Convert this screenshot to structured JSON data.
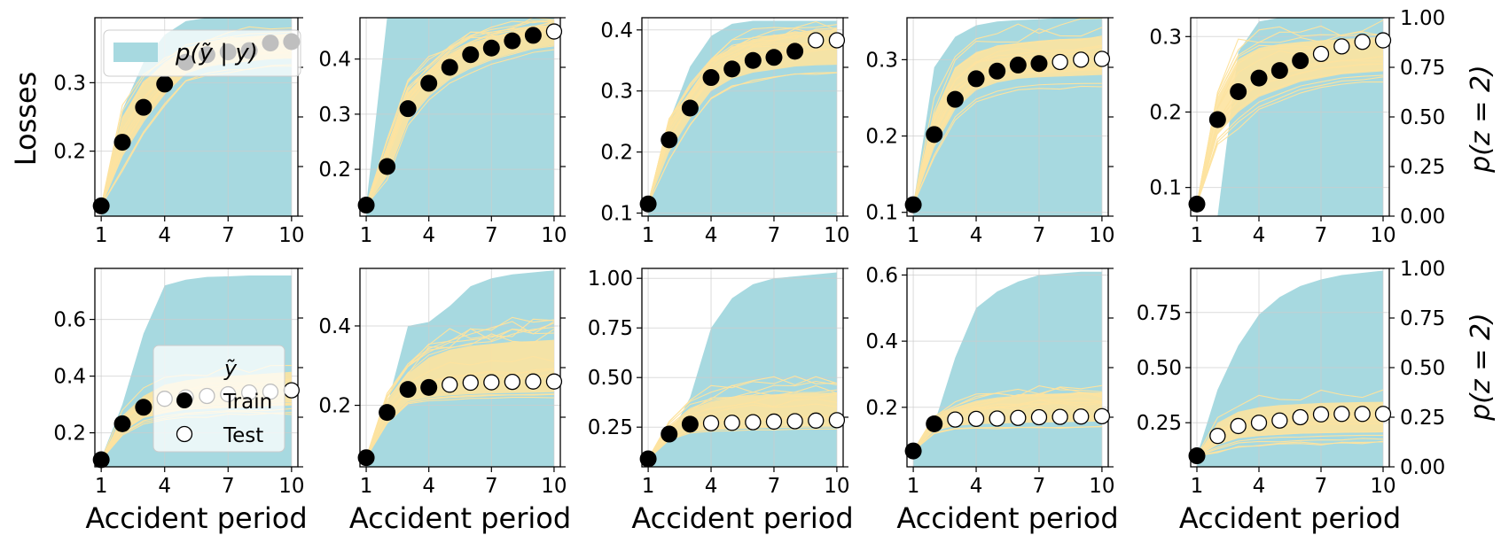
{
  "figure": {
    "ylabel_left": "Losses",
    "ylabel_right": "p(z = 2)",
    "xlabel": "Accident period",
    "legend_top": {
      "series": "p(ỹ | y)"
    },
    "legend_bottom": {
      "title": "ỹ",
      "train": "Train",
      "test": "Test"
    }
  },
  "colors": {
    "band": "#a7d9e0",
    "paths": "#fde3a0",
    "dots": "#000000"
  },
  "chart_data": [
    {
      "type": "scatter",
      "row": 0,
      "col": 0,
      "xlabel": "",
      "ylabel": "Losses",
      "xticks": [
        1,
        4,
        7,
        10
      ],
      "yticks": [
        0.2,
        0.3
      ],
      "ylim": [
        0.105,
        0.395
      ],
      "rticks": [],
      "x": [
        1,
        2,
        3,
        4,
        5,
        6,
        7,
        8,
        9,
        10
      ],
      "y": [
        0.12,
        0.213,
        0.264,
        0.298,
        0.33,
        0.341,
        0.345,
        0.347,
        0.358,
        0.36
      ],
      "train_n": 10,
      "band_upper": [
        0.12,
        0.26,
        0.33,
        0.37,
        0.39,
        0.395,
        0.395,
        0.395,
        0.395,
        0.395
      ],
      "band_lower": [
        0.105,
        0.105,
        0.105,
        0.105,
        0.105,
        0.105,
        0.105,
        0.105,
        0.105,
        0.105
      ],
      "path_lo": [
        0.12,
        0.195,
        0.245,
        0.285,
        0.315,
        0.325,
        0.33,
        0.333,
        0.336,
        0.337
      ],
      "path_hi": [
        0.12,
        0.25,
        0.3,
        0.33,
        0.35,
        0.36,
        0.365,
        0.368,
        0.37,
        0.372
      ]
    },
    {
      "type": "scatter",
      "row": 0,
      "col": 1,
      "xlabel": "",
      "ylabel": "",
      "xticks": [
        1,
        4,
        7,
        10
      ],
      "yticks": [
        0.2,
        0.3,
        0.4
      ],
      "ylim": [
        0.115,
        0.475
      ],
      "rticks": [],
      "x": [
        1,
        2,
        3,
        4,
        5,
        6,
        7,
        8,
        9,
        10
      ],
      "y": [
        0.135,
        0.205,
        0.31,
        0.356,
        0.385,
        0.408,
        0.42,
        0.433,
        0.443,
        0.45
      ],
      "train_n": 9,
      "band_upper": [
        0.135,
        0.475,
        0.475,
        0.475,
        0.475,
        0.475,
        0.475,
        0.475,
        0.475,
        0.475
      ],
      "band_lower": [
        0.115,
        0.115,
        0.115,
        0.115,
        0.115,
        0.115,
        0.115,
        0.115,
        0.115,
        0.115
      ],
      "path_lo": [
        0.135,
        0.19,
        0.29,
        0.335,
        0.365,
        0.385,
        0.4,
        0.41,
        0.42,
        0.425
      ],
      "path_hi": [
        0.135,
        0.235,
        0.34,
        0.38,
        0.41,
        0.43,
        0.44,
        0.45,
        0.458,
        0.463
      ]
    },
    {
      "type": "scatter",
      "row": 0,
      "col": 2,
      "xlabel": "",
      "ylabel": "",
      "xticks": [
        1,
        4,
        7,
        10
      ],
      "yticks": [
        0.1,
        0.2,
        0.3,
        0.4
      ],
      "ylim": [
        0.095,
        0.42
      ],
      "rticks": [],
      "x": [
        1,
        2,
        3,
        4,
        5,
        6,
        7,
        8,
        9,
        10
      ],
      "y": [
        0.115,
        0.22,
        0.272,
        0.322,
        0.336,
        0.35,
        0.355,
        0.365,
        0.383,
        0.383
      ],
      "train_n": 8,
      "band_upper": [
        0.12,
        0.25,
        0.34,
        0.39,
        0.41,
        0.415,
        0.415,
        0.415,
        0.415,
        0.415
      ],
      "band_lower": [
        0.095,
        0.095,
        0.095,
        0.095,
        0.095,
        0.095,
        0.095,
        0.095,
        0.095,
        0.095
      ],
      "path_lo": [
        0.115,
        0.2,
        0.255,
        0.3,
        0.32,
        0.33,
        0.335,
        0.34,
        0.342,
        0.343
      ],
      "path_hi": [
        0.115,
        0.25,
        0.3,
        0.35,
        0.37,
        0.385,
        0.39,
        0.395,
        0.398,
        0.4
      ]
    },
    {
      "type": "scatter",
      "row": 0,
      "col": 3,
      "xlabel": "",
      "ylabel": "",
      "xticks": [
        1,
        4,
        7,
        10
      ],
      "yticks": [
        0.1,
        0.2,
        0.3
      ],
      "ylim": [
        0.095,
        0.355
      ],
      "rticks": [],
      "x": [
        1,
        2,
        3,
        4,
        5,
        6,
        7,
        8,
        9,
        10
      ],
      "y": [
        0.11,
        0.202,
        0.248,
        0.275,
        0.285,
        0.293,
        0.295,
        0.297,
        0.3,
        0.301
      ],
      "train_n": 7,
      "band_upper": [
        0.11,
        0.29,
        0.33,
        0.345,
        0.35,
        0.352,
        0.353,
        0.355,
        0.355,
        0.355
      ],
      "band_lower": [
        0.095,
        0.095,
        0.095,
        0.095,
        0.095,
        0.095,
        0.095,
        0.095,
        0.095,
        0.095
      ],
      "path_lo": [
        0.11,
        0.185,
        0.235,
        0.26,
        0.27,
        0.275,
        0.277,
        0.278,
        0.279,
        0.28
      ],
      "path_hi": [
        0.11,
        0.23,
        0.29,
        0.31,
        0.318,
        0.322,
        0.325,
        0.327,
        0.328,
        0.33
      ]
    },
    {
      "type": "scatter",
      "row": 0,
      "col": 4,
      "xlabel": "",
      "ylabel": "p(z = 2)",
      "xticks": [
        1,
        4,
        7,
        10
      ],
      "yticks": [
        0.1,
        0.2,
        0.3
      ],
      "ylim": [
        0.062,
        0.325
      ],
      "rticks": [
        0.0,
        0.25,
        0.5,
        0.75,
        1.0
      ],
      "rtick_labels": [
        "0.00",
        "0.25",
        "0.50",
        "0.75",
        "1.00"
      ],
      "x": [
        1,
        2,
        3,
        4,
        5,
        6,
        7,
        8,
        9,
        10
      ],
      "y": [
        0.078,
        0.19,
        0.227,
        0.245,
        0.255,
        0.268,
        0.277,
        0.287,
        0.293,
        0.295
      ],
      "train_n": 6,
      "band_upper": [
        0.062,
        0.062,
        0.28,
        0.32,
        0.325,
        0.325,
        0.325,
        0.325,
        0.325,
        0.325
      ],
      "band_lower": [
        0.062,
        0.062,
        0.062,
        0.062,
        0.062,
        0.062,
        0.062,
        0.062,
        0.062,
        0.062
      ],
      "path_lo": [
        0.078,
        0.17,
        0.2,
        0.22,
        0.23,
        0.24,
        0.245,
        0.25,
        0.252,
        0.254
      ],
      "path_hi": [
        0.078,
        0.22,
        0.27,
        0.285,
        0.29,
        0.293,
        0.295,
        0.297,
        0.298,
        0.3
      ]
    },
    {
      "type": "scatter",
      "row": 1,
      "col": 0,
      "xlabel": "Accident period",
      "ylabel": "",
      "xticks": [
        1,
        4,
        7,
        10
      ],
      "yticks": [
        0.2,
        0.4,
        0.6
      ],
      "ylim": [
        0.08,
        0.78
      ],
      "rticks": [],
      "x": [
        1,
        2,
        3,
        4,
        5,
        6,
        7,
        8,
        9,
        10
      ],
      "y": [
        0.105,
        0.232,
        0.29,
        0.32,
        0.325,
        0.33,
        0.336,
        0.342,
        0.345,
        0.35
      ],
      "train_n": 3,
      "band_upper": [
        0.11,
        0.3,
        0.55,
        0.72,
        0.74,
        0.75,
        0.752,
        0.755,
        0.755,
        0.755
      ],
      "band_lower": [
        0.08,
        0.08,
        0.08,
        0.08,
        0.08,
        0.08,
        0.08,
        0.08,
        0.08,
        0.08
      ],
      "path_lo": [
        0.105,
        0.21,
        0.26,
        0.28,
        0.29,
        0.295,
        0.3,
        0.302,
        0.305,
        0.307
      ],
      "path_hi": [
        0.105,
        0.26,
        0.33,
        0.37,
        0.385,
        0.395,
        0.4,
        0.405,
        0.41,
        0.415
      ]
    },
    {
      "type": "scatter",
      "row": 1,
      "col": 1,
      "xlabel": "Accident period",
      "ylabel": "",
      "xticks": [
        1,
        4,
        7,
        10
      ],
      "yticks": [
        0.2,
        0.4
      ],
      "ylim": [
        0.045,
        0.545
      ],
      "rticks": [],
      "x": [
        1,
        2,
        3,
        4,
        5,
        6,
        7,
        8,
        9,
        10
      ],
      "y": [
        0.068,
        0.182,
        0.24,
        0.245,
        0.252,
        0.257,
        0.258,
        0.259,
        0.26,
        0.26
      ],
      "train_n": 4,
      "band_upper": [
        0.07,
        0.2,
        0.4,
        0.41,
        0.45,
        0.5,
        0.52,
        0.53,
        0.535,
        0.54
      ],
      "band_lower": [
        0.045,
        0.045,
        0.045,
        0.045,
        0.045,
        0.045,
        0.045,
        0.045,
        0.045,
        0.045
      ],
      "path_lo": [
        0.068,
        0.16,
        0.21,
        0.22,
        0.225,
        0.228,
        0.23,
        0.231,
        0.232,
        0.233
      ],
      "path_hi": [
        0.068,
        0.21,
        0.28,
        0.32,
        0.34,
        0.35,
        0.355,
        0.36,
        0.362,
        0.365
      ]
    },
    {
      "type": "scatter",
      "row": 1,
      "col": 2,
      "xlabel": "Accident period",
      "ylabel": "",
      "xticks": [
        1,
        4,
        7,
        10
      ],
      "yticks": [
        0.25,
        0.5,
        0.75,
        1.0
      ],
      "ytick_labels": [
        "0.25",
        "0.50",
        "0.75",
        "1.00"
      ],
      "ylim": [
        0.05,
        1.05
      ],
      "rticks": [],
      "x": [
        1,
        2,
        3,
        4,
        5,
        6,
        7,
        8,
        9,
        10
      ],
      "y": [
        0.09,
        0.215,
        0.265,
        0.27,
        0.272,
        0.275,
        0.278,
        0.28,
        0.283,
        0.285
      ],
      "train_n": 3,
      "band_upper": [
        0.09,
        0.2,
        0.4,
        0.75,
        0.9,
        0.97,
        1.0,
        1.01,
        1.02,
        1.03
      ],
      "band_lower": [
        0.05,
        0.05,
        0.05,
        0.05,
        0.05,
        0.05,
        0.05,
        0.05,
        0.05,
        0.05
      ],
      "path_lo": [
        0.09,
        0.19,
        0.23,
        0.24,
        0.245,
        0.25,
        0.252,
        0.254,
        0.255,
        0.256
      ],
      "path_hi": [
        0.09,
        0.25,
        0.34,
        0.38,
        0.4,
        0.41,
        0.415,
        0.42,
        0.422,
        0.425
      ]
    },
    {
      "type": "scatter",
      "row": 1,
      "col": 3,
      "xlabel": "Accident period",
      "ylabel": "",
      "xticks": [
        1,
        4,
        7,
        10
      ],
      "yticks": [
        0.2,
        0.4,
        0.6
      ],
      "ylim": [
        0.02,
        0.62
      ],
      "rticks": [],
      "x": [
        1,
        2,
        3,
        4,
        5,
        6,
        7,
        8,
        9,
        10
      ],
      "y": [
        0.068,
        0.15,
        0.163,
        0.165,
        0.166,
        0.168,
        0.17,
        0.171,
        0.172,
        0.173
      ],
      "train_n": 2,
      "band_upper": [
        0.07,
        0.15,
        0.35,
        0.5,
        0.55,
        0.58,
        0.6,
        0.605,
        0.61,
        0.61
      ],
      "band_lower": [
        0.02,
        0.02,
        0.02,
        0.02,
        0.02,
        0.02,
        0.02,
        0.02,
        0.02,
        0.02
      ],
      "path_lo": [
        0.068,
        0.13,
        0.145,
        0.15,
        0.152,
        0.154,
        0.155,
        0.156,
        0.157,
        0.158
      ],
      "path_hi": [
        0.068,
        0.17,
        0.2,
        0.22,
        0.23,
        0.235,
        0.24,
        0.242,
        0.244,
        0.245
      ]
    },
    {
      "type": "scatter",
      "row": 1,
      "col": 4,
      "xlabel": "Accident period",
      "ylabel": "p(z = 2)",
      "xticks": [
        1,
        4,
        7,
        10
      ],
      "yticks": [
        0.25,
        0.5,
        0.75
      ],
      "ytick_labels": [
        "0.25",
        "0.50",
        "0.75"
      ],
      "ylim": [
        0.05,
        0.95
      ],
      "rticks": [
        0.0,
        0.25,
        0.5,
        0.75,
        1.0
      ],
      "rtick_labels": [
        "0.00",
        "0.25",
        "0.50",
        "0.75",
        "1.00"
      ],
      "x": [
        1,
        2,
        3,
        4,
        5,
        6,
        7,
        8,
        9,
        10
      ],
      "y": [
        0.1,
        0.19,
        0.235,
        0.25,
        0.26,
        0.275,
        0.288,
        0.29,
        0.29,
        0.29
      ],
      "train_n": 1,
      "band_upper": [
        0.1,
        0.4,
        0.6,
        0.74,
        0.82,
        0.87,
        0.9,
        0.92,
        0.93,
        0.94
      ],
      "band_lower": [
        0.05,
        0.05,
        0.05,
        0.05,
        0.05,
        0.05,
        0.05,
        0.05,
        0.05,
        0.05
      ],
      "path_lo": [
        0.1,
        0.15,
        0.18,
        0.19,
        0.195,
        0.2,
        0.202,
        0.204,
        0.205,
        0.206
      ],
      "path_hi": [
        0.1,
        0.25,
        0.3,
        0.32,
        0.33,
        0.335,
        0.34,
        0.342,
        0.344,
        0.345
      ]
    }
  ]
}
